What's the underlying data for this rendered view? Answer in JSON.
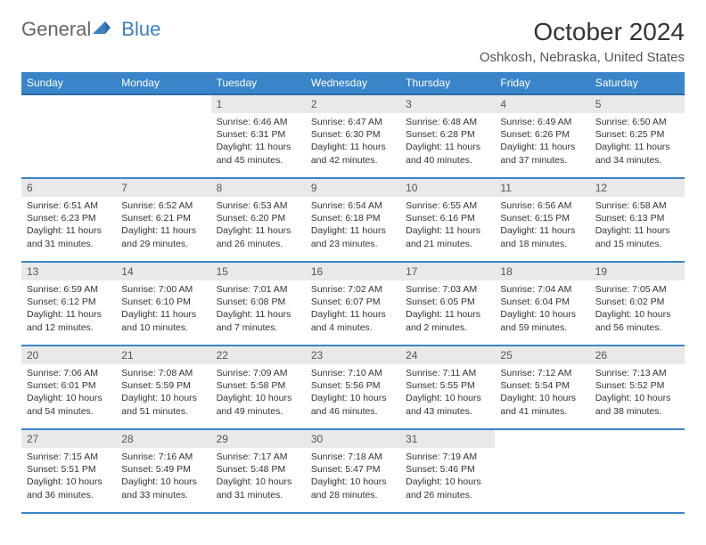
{
  "logo": {
    "text1": "General",
    "text2": "Blue"
  },
  "title": "October 2024",
  "location": "Oshkosh, Nebraska, United States",
  "colors": {
    "header_bg": "#3a85c9",
    "header_border": "#2a6aa5",
    "daynum_bg": "#e9e9e9",
    "row_border": "#3a85c9",
    "logo_blue": "#3a7fc4",
    "text": "#333333",
    "bg": "#ffffff"
  },
  "columns": [
    "Sunday",
    "Monday",
    "Tuesday",
    "Wednesday",
    "Thursday",
    "Friday",
    "Saturday"
  ],
  "weeks": [
    [
      null,
      null,
      {
        "n": "1",
        "sr": "Sunrise: 6:46 AM",
        "ss": "Sunset: 6:31 PM",
        "dl": "Daylight: 11 hours and 45 minutes."
      },
      {
        "n": "2",
        "sr": "Sunrise: 6:47 AM",
        "ss": "Sunset: 6:30 PM",
        "dl": "Daylight: 11 hours and 42 minutes."
      },
      {
        "n": "3",
        "sr": "Sunrise: 6:48 AM",
        "ss": "Sunset: 6:28 PM",
        "dl": "Daylight: 11 hours and 40 minutes."
      },
      {
        "n": "4",
        "sr": "Sunrise: 6:49 AM",
        "ss": "Sunset: 6:26 PM",
        "dl": "Daylight: 11 hours and 37 minutes."
      },
      {
        "n": "5",
        "sr": "Sunrise: 6:50 AM",
        "ss": "Sunset: 6:25 PM",
        "dl": "Daylight: 11 hours and 34 minutes."
      }
    ],
    [
      {
        "n": "6",
        "sr": "Sunrise: 6:51 AM",
        "ss": "Sunset: 6:23 PM",
        "dl": "Daylight: 11 hours and 31 minutes."
      },
      {
        "n": "7",
        "sr": "Sunrise: 6:52 AM",
        "ss": "Sunset: 6:21 PM",
        "dl": "Daylight: 11 hours and 29 minutes."
      },
      {
        "n": "8",
        "sr": "Sunrise: 6:53 AM",
        "ss": "Sunset: 6:20 PM",
        "dl": "Daylight: 11 hours and 26 minutes."
      },
      {
        "n": "9",
        "sr": "Sunrise: 6:54 AM",
        "ss": "Sunset: 6:18 PM",
        "dl": "Daylight: 11 hours and 23 minutes."
      },
      {
        "n": "10",
        "sr": "Sunrise: 6:55 AM",
        "ss": "Sunset: 6:16 PM",
        "dl": "Daylight: 11 hours and 21 minutes."
      },
      {
        "n": "11",
        "sr": "Sunrise: 6:56 AM",
        "ss": "Sunset: 6:15 PM",
        "dl": "Daylight: 11 hours and 18 minutes."
      },
      {
        "n": "12",
        "sr": "Sunrise: 6:58 AM",
        "ss": "Sunset: 6:13 PM",
        "dl": "Daylight: 11 hours and 15 minutes."
      }
    ],
    [
      {
        "n": "13",
        "sr": "Sunrise: 6:59 AM",
        "ss": "Sunset: 6:12 PM",
        "dl": "Daylight: 11 hours and 12 minutes."
      },
      {
        "n": "14",
        "sr": "Sunrise: 7:00 AM",
        "ss": "Sunset: 6:10 PM",
        "dl": "Daylight: 11 hours and 10 minutes."
      },
      {
        "n": "15",
        "sr": "Sunrise: 7:01 AM",
        "ss": "Sunset: 6:08 PM",
        "dl": "Daylight: 11 hours and 7 minutes."
      },
      {
        "n": "16",
        "sr": "Sunrise: 7:02 AM",
        "ss": "Sunset: 6:07 PM",
        "dl": "Daylight: 11 hours and 4 minutes."
      },
      {
        "n": "17",
        "sr": "Sunrise: 7:03 AM",
        "ss": "Sunset: 6:05 PM",
        "dl": "Daylight: 11 hours and 2 minutes."
      },
      {
        "n": "18",
        "sr": "Sunrise: 7:04 AM",
        "ss": "Sunset: 6:04 PM",
        "dl": "Daylight: 10 hours and 59 minutes."
      },
      {
        "n": "19",
        "sr": "Sunrise: 7:05 AM",
        "ss": "Sunset: 6:02 PM",
        "dl": "Daylight: 10 hours and 56 minutes."
      }
    ],
    [
      {
        "n": "20",
        "sr": "Sunrise: 7:06 AM",
        "ss": "Sunset: 6:01 PM",
        "dl": "Daylight: 10 hours and 54 minutes."
      },
      {
        "n": "21",
        "sr": "Sunrise: 7:08 AM",
        "ss": "Sunset: 5:59 PM",
        "dl": "Daylight: 10 hours and 51 minutes."
      },
      {
        "n": "22",
        "sr": "Sunrise: 7:09 AM",
        "ss": "Sunset: 5:58 PM",
        "dl": "Daylight: 10 hours and 49 minutes."
      },
      {
        "n": "23",
        "sr": "Sunrise: 7:10 AM",
        "ss": "Sunset: 5:56 PM",
        "dl": "Daylight: 10 hours and 46 minutes."
      },
      {
        "n": "24",
        "sr": "Sunrise: 7:11 AM",
        "ss": "Sunset: 5:55 PM",
        "dl": "Daylight: 10 hours and 43 minutes."
      },
      {
        "n": "25",
        "sr": "Sunrise: 7:12 AM",
        "ss": "Sunset: 5:54 PM",
        "dl": "Daylight: 10 hours and 41 minutes."
      },
      {
        "n": "26",
        "sr": "Sunrise: 7:13 AM",
        "ss": "Sunset: 5:52 PM",
        "dl": "Daylight: 10 hours and 38 minutes."
      }
    ],
    [
      {
        "n": "27",
        "sr": "Sunrise: 7:15 AM",
        "ss": "Sunset: 5:51 PM",
        "dl": "Daylight: 10 hours and 36 minutes."
      },
      {
        "n": "28",
        "sr": "Sunrise: 7:16 AM",
        "ss": "Sunset: 5:49 PM",
        "dl": "Daylight: 10 hours and 33 minutes."
      },
      {
        "n": "29",
        "sr": "Sunrise: 7:17 AM",
        "ss": "Sunset: 5:48 PM",
        "dl": "Daylight: 10 hours and 31 minutes."
      },
      {
        "n": "30",
        "sr": "Sunrise: 7:18 AM",
        "ss": "Sunset: 5:47 PM",
        "dl": "Daylight: 10 hours and 28 minutes."
      },
      {
        "n": "31",
        "sr": "Sunrise: 7:19 AM",
        "ss": "Sunset: 5:46 PM",
        "dl": "Daylight: 10 hours and 26 minutes."
      },
      null,
      null
    ]
  ]
}
